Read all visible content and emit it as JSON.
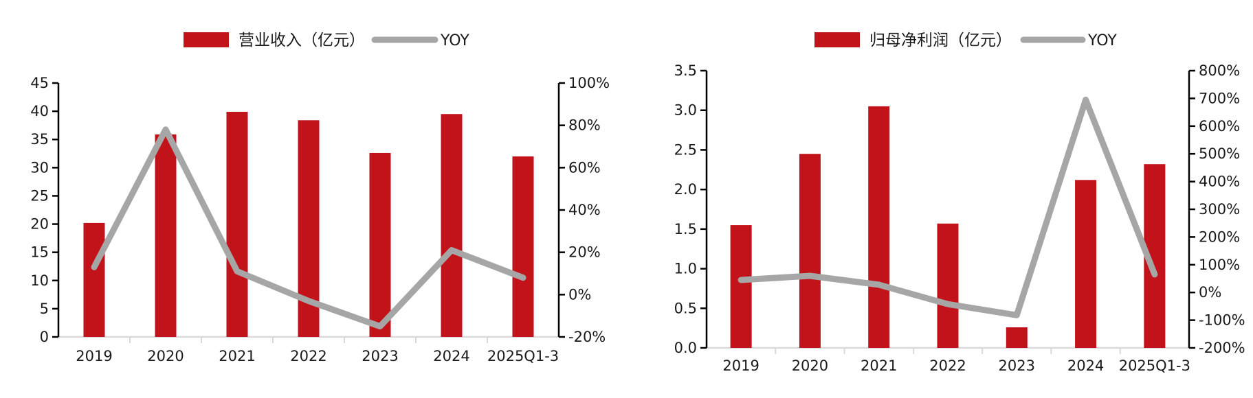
{
  "colors": {
    "bar_red": "#C2121A",
    "line_gray": "#A6A6A6",
    "axis_black": "#000000",
    "baseline_gray": "#D9D9D9",
    "text": "#1a1a1a",
    "background": "#ffffff"
  },
  "charts": [
    {
      "name": "operating-revenue-chart",
      "legend": {
        "bar_label": "营业收入（亿元）",
        "line_label": "YOY"
      },
      "chart_data": {
        "type": "bar+line",
        "title": "",
        "legend_position": "top",
        "grid": false,
        "categories": [
          "2019",
          "2020",
          "2021",
          "2022",
          "2023",
          "2024",
          "2025Q1-3"
        ],
        "series": [
          {
            "name": "营业收入（亿元）",
            "type": "bar",
            "axis": "left",
            "color": "#C2121A",
            "values": [
              20.2,
              35.9,
              39.9,
              38.4,
              32.6,
              39.5,
              32.0
            ]
          },
          {
            "name": "YOY",
            "type": "line",
            "axis": "right",
            "color": "#A6A6A6",
            "unit": "%",
            "values": [
              13,
              78,
              11,
              -3,
              -15,
              21,
              8
            ]
          }
        ],
        "left_axis": {
          "min": 0,
          "max": 45,
          "step": 5,
          "ticks": [
            "0",
            "5",
            "10",
            "15",
            "20",
            "25",
            "30",
            "35",
            "40",
            "45"
          ]
        },
        "right_axis": {
          "min": -20,
          "max": 100,
          "step": 20,
          "suffix": "%",
          "ticks": [
            "-20%",
            "0%",
            "20%",
            "40%",
            "60%",
            "80%",
            "100%"
          ]
        }
      }
    },
    {
      "name": "net-profit-chart",
      "legend": {
        "bar_label": "归母净利润（亿元）",
        "line_label": "YOY"
      },
      "chart_data": {
        "type": "bar+line",
        "title": "",
        "legend_position": "top",
        "grid": false,
        "categories": [
          "2019",
          "2020",
          "2021",
          "2022",
          "2023",
          "2024",
          "2025Q1-3"
        ],
        "series": [
          {
            "name": "归母净利润（亿元）",
            "type": "bar",
            "axis": "left",
            "color": "#C2121A",
            "values": [
              1.55,
              2.45,
              3.05,
              1.57,
              0.26,
              2.12,
              2.32
            ]
          },
          {
            "name": "YOY",
            "type": "line",
            "axis": "right",
            "color": "#A6A6A6",
            "unit": "%",
            "values": [
              45,
              60,
              28,
              -42,
              -82,
              695,
              65
            ]
          }
        ],
        "left_axis": {
          "min": 0,
          "max": 3.5,
          "step": 0.5,
          "ticks": [
            "0.0",
            "0.5",
            "1.0",
            "1.5",
            "2.0",
            "2.5",
            "3.0",
            "3.5"
          ]
        },
        "right_axis": {
          "min": -200,
          "max": 800,
          "step": 100,
          "suffix": "%",
          "ticks": [
            "-200%",
            "-100%",
            "0%",
            "100%",
            "200%",
            "300%",
            "400%",
            "500%",
            "600%",
            "700%",
            "800%"
          ]
        }
      }
    }
  ]
}
